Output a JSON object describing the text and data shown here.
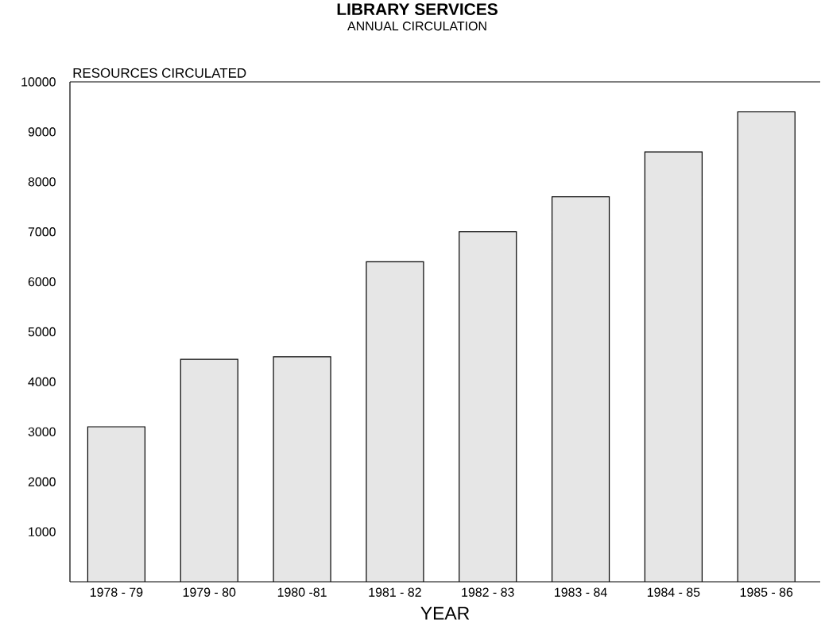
{
  "chart_data": {
    "type": "bar",
    "title": "LIBRARY SERVICES",
    "subtitle": "ANNUAL CIRCULATION",
    "ylabel": "RESOURCES CIRCULATED",
    "xlabel": "YEAR",
    "categories": [
      "1978 - 79",
      "1979 - 80",
      "1980 -81",
      "1981 - 82",
      "1982 - 83",
      "1983 - 84",
      "1984 - 85",
      "1985 - 86"
    ],
    "values": [
      3100,
      4450,
      4500,
      6400,
      7000,
      7700,
      8600,
      9400
    ],
    "color": "#e6e6e6",
    "ylim": [
      0,
      10000
    ],
    "yticks": [
      1000,
      2000,
      3000,
      4000,
      5000,
      6000,
      7000,
      8000,
      9000,
      10000
    ],
    "grid": false
  }
}
